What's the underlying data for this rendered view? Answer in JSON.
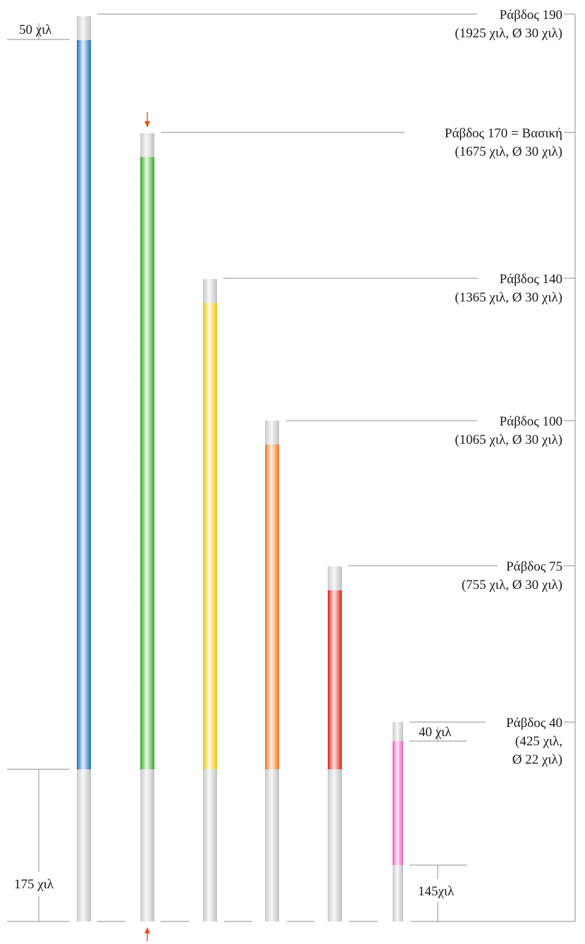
{
  "rods": [
    {
      "name": "Ράβδος 190",
      "spec": "(1925 χιλ, Ø 30 χιλ)",
      "color": "#1b73c2"
    },
    {
      "name": "Ράβδος 170 = Βασική",
      "spec": "(1675 χιλ, Ø 30 χιλ)",
      "color": "#3dac2f"
    },
    {
      "name": "Ράβδος 140",
      "spec": "(1365 χιλ, Ø 30 χιλ)",
      "color": "#f2c417"
    },
    {
      "name": "Ράβδος 100",
      "spec": "(1065 χιλ, Ø 30 χιλ)",
      "color": "#f2761e"
    },
    {
      "name": "Ράβδος 75",
      "spec": "(755 χιλ, Ø 30 χιλ)",
      "color": "#e0231c"
    },
    {
      "name": "Ράβδος 40",
      "spec_lines": [
        "(425 χιλ,",
        "Ø 22 χιλ)"
      ],
      "color": "#f060b8"
    }
  ],
  "dimensions": {
    "top_cap": "50 χιλ",
    "bottom_cap": "175 χιλ",
    "small_top_cap": "40 χιλ",
    "small_bottom_cap": "145χιλ"
  },
  "colors": {
    "cap": "#d4d5d7",
    "arrow": "#e8501a",
    "line": "#8c8c8c"
  }
}
